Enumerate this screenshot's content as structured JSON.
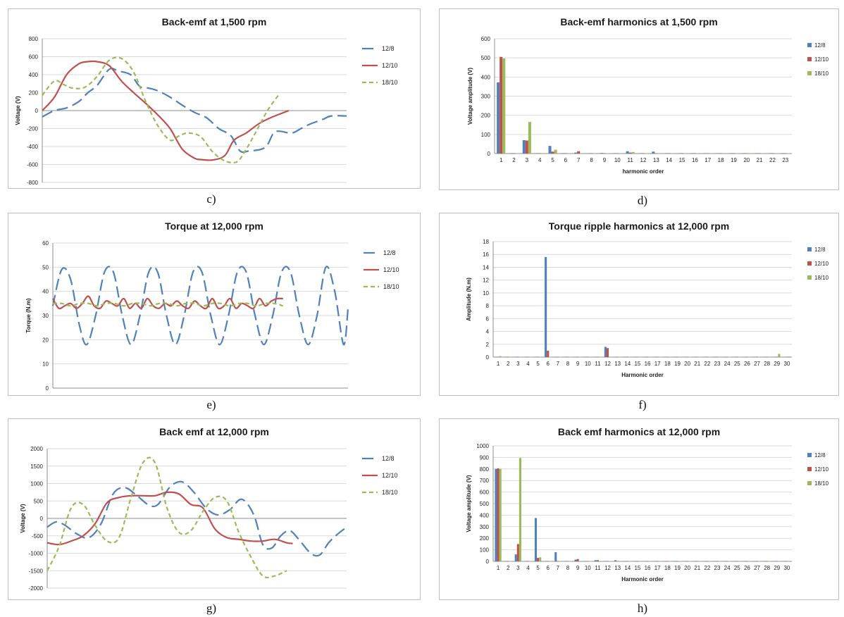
{
  "captions": [
    "c)",
    "d)",
    "e)",
    "f)",
    "g)",
    "h)"
  ],
  "colors": {
    "s12_8": "#4f81bd",
    "s12_10": "#c0504d",
    "s18_10": "#9bbb59"
  },
  "chart_data": [
    {
      "id": "c",
      "type": "line",
      "title": "Back-emf at 1,500 rpm",
      "xlabel": "",
      "ylabel": "Voltage (V)",
      "ylim": [
        -800,
        800
      ],
      "yticks": [
        -800,
        -600,
        -400,
        -200,
        0,
        200,
        400,
        600,
        800
      ],
      "xlim": [
        0,
        1
      ],
      "grid": true,
      "legend": "right",
      "series": [
        {
          "name": "12/8",
          "dash": "long",
          "x": [
            0,
            0.04,
            0.08,
            0.12,
            0.15,
            0.18,
            0.22,
            0.25,
            0.29,
            0.32,
            0.35,
            0.38,
            0.42,
            0.46,
            0.5,
            0.54,
            0.58,
            0.62,
            0.65,
            0.68,
            0.72,
            0.74,
            0.76,
            0.78,
            0.82,
            0.85,
            0.88,
            0.92,
            0.95,
            1.0
          ],
          "y": [
            -70,
            0,
            30,
            100,
            200,
            280,
            460,
            440,
            400,
            270,
            250,
            220,
            150,
            60,
            -20,
            -80,
            -200,
            -280,
            -450,
            -450,
            -430,
            -380,
            -250,
            -230,
            -250,
            -200,
            -150,
            -100,
            -60,
            -60
          ]
        },
        {
          "name": "12/10",
          "dash": "solid",
          "x": [
            0,
            0.04,
            0.08,
            0.12,
            0.15,
            0.18,
            0.22,
            0.26,
            0.3,
            0.34,
            0.38,
            0.42,
            0.46,
            0.5,
            0.52,
            0.56,
            0.6,
            0.63,
            0.67,
            0.71,
            0.75,
            0.81
          ],
          "y": [
            0,
            150,
            400,
            520,
            545,
            545,
            500,
            330,
            200,
            80,
            -50,
            -200,
            -430,
            -530,
            -545,
            -550,
            -500,
            -330,
            -250,
            -150,
            -80,
            0
          ]
        },
        {
          "name": "18/10",
          "dash": "short",
          "x": [
            0,
            0.04,
            0.07,
            0.1,
            0.14,
            0.18,
            0.22,
            0.26,
            0.3,
            0.34,
            0.38,
            0.42,
            0.45,
            0.48,
            0.52,
            0.56,
            0.6,
            0.64,
            0.67,
            0.7,
            0.74,
            0.78
          ],
          "y": [
            170,
            330,
            290,
            250,
            260,
            380,
            560,
            580,
            430,
            100,
            -170,
            -330,
            -280,
            -250,
            -290,
            -460,
            -560,
            -570,
            -430,
            -250,
            0,
            190
          ]
        }
      ]
    },
    {
      "id": "d",
      "type": "bar",
      "title": "Back-emf harmonics at 1,500 rpm",
      "xlabel": "harmonic order",
      "ylabel": "Voltage amplitude (V)",
      "ylim": [
        0,
        600
      ],
      "yticks": [
        0,
        100,
        200,
        300,
        400,
        500,
        600
      ],
      "grid": true,
      "legend": "right",
      "categories": [
        "1",
        "2",
        "3",
        "4",
        "5",
        "6",
        "7",
        "8",
        "9",
        "10",
        "11",
        "12",
        "13",
        "14",
        "15",
        "16",
        "17",
        "18",
        "19",
        "20",
        "21",
        "22",
        "23"
      ],
      "series": [
        {
          "name": "12/8",
          "values": [
            372,
            2,
            70,
            2,
            40,
            2,
            5,
            2,
            3,
            2,
            12,
            2,
            10,
            2,
            2,
            2,
            2,
            2,
            2,
            2,
            2,
            2,
            2
          ]
        },
        {
          "name": "12/10",
          "values": [
            505,
            2,
            68,
            2,
            10,
            2,
            12,
            2,
            2,
            2,
            5,
            2,
            2,
            2,
            2,
            2,
            2,
            2,
            2,
            2,
            2,
            2,
            2
          ]
        },
        {
          "name": "18/10",
          "values": [
            497,
            2,
            165,
            2,
            20,
            2,
            2,
            2,
            2,
            2,
            8,
            2,
            2,
            2,
            2,
            2,
            2,
            2,
            2,
            2,
            2,
            2,
            2
          ]
        }
      ]
    },
    {
      "id": "e",
      "type": "line",
      "title": "Torque at 12,000 rpm",
      "xlabel": "",
      "ylabel": "Torque (N.m)",
      "ylim": [
        0,
        60
      ],
      "yticks": [
        0,
        10,
        20,
        30,
        40,
        50,
        60
      ],
      "xlim": [
        0,
        1
      ],
      "grid": true,
      "legend": "right",
      "series": [
        {
          "name": "12/8",
          "dash": "long",
          "x": [
            0,
            0.03,
            0.06,
            0.09,
            0.115,
            0.145,
            0.175,
            0.205,
            0.235,
            0.265,
            0.295,
            0.325,
            0.355,
            0.385,
            0.415,
            0.445,
            0.475,
            0.505,
            0.535,
            0.565,
            0.595,
            0.625,
            0.655,
            0.685,
            0.715,
            0.745,
            0.775,
            0.805,
            0.835,
            0.865,
            0.895,
            0.925,
            0.955,
            0.985,
            1.0
          ],
          "y": [
            34,
            49,
            45,
            26,
            18,
            30,
            48,
            48,
            30,
            18,
            30,
            48,
            48,
            30,
            18,
            30,
            48,
            48,
            30,
            18,
            30,
            48,
            48,
            30,
            18,
            30,
            48,
            48,
            30,
            18,
            30,
            50,
            40,
            18,
            33
          ]
        },
        {
          "name": "12/10",
          "dash": "solid",
          "x": [
            0,
            0.02,
            0.04,
            0.06,
            0.08,
            0.1,
            0.12,
            0.14,
            0.16,
            0.18,
            0.2,
            0.22,
            0.24,
            0.26,
            0.28,
            0.3,
            0.32,
            0.34,
            0.36,
            0.38,
            0.4,
            0.42,
            0.44,
            0.46,
            0.48,
            0.5,
            0.52,
            0.54,
            0.56,
            0.58,
            0.6,
            0.62,
            0.64,
            0.66,
            0.68,
            0.7,
            0.72,
            0.74,
            0.76,
            0.78
          ],
          "y": [
            37,
            33,
            34,
            35,
            33,
            35,
            38,
            34,
            33,
            36,
            35,
            34,
            37,
            33,
            35,
            33,
            37,
            34,
            33,
            35,
            34,
            36,
            34,
            33,
            36,
            34,
            33,
            37,
            33,
            34,
            37,
            33,
            35,
            34,
            33,
            37,
            34,
            36,
            37,
            37
          ]
        },
        {
          "name": "18/10",
          "dash": "short",
          "x": [
            0,
            0.03,
            0.06,
            0.09,
            0.12,
            0.15,
            0.18,
            0.21,
            0.24,
            0.27,
            0.3,
            0.33,
            0.36,
            0.39,
            0.42,
            0.45,
            0.48,
            0.51,
            0.54,
            0.57,
            0.6,
            0.63,
            0.66,
            0.69,
            0.72,
            0.75,
            0.78
          ],
          "y": [
            35,
            35,
            34,
            35,
            35,
            34,
            35,
            35,
            34,
            35,
            35,
            34,
            35,
            35,
            34,
            35,
            35,
            34,
            35,
            35,
            34,
            35,
            35,
            34,
            35,
            35,
            34
          ]
        }
      ]
    },
    {
      "id": "f",
      "type": "bar",
      "title": "Torque ripple harmonics at 12,000 rpm",
      "xlabel": "Harmonic order",
      "ylabel": "Amplitude (N.m)",
      "ylim": [
        0,
        18
      ],
      "yticks": [
        0,
        2,
        4,
        6,
        8,
        10,
        12,
        14,
        16,
        18
      ],
      "grid": true,
      "legend": "right",
      "categories": [
        "1",
        "2",
        "3",
        "4",
        "5",
        "6",
        "7",
        "8",
        "9",
        "10",
        "11",
        "12",
        "13",
        "14",
        "15",
        "16",
        "17",
        "18",
        "19",
        "20",
        "21",
        "22",
        "23",
        "24",
        "25",
        "26",
        "27",
        "28",
        "29",
        "30"
      ],
      "series": [
        {
          "name": "12/8",
          "values": [
            0.05,
            0.05,
            0.05,
            0.05,
            0.05,
            15.6,
            0.05,
            0.05,
            0.05,
            0.05,
            0.05,
            1.6,
            0.05,
            0.05,
            0.05,
            0.05,
            0.05,
            0.05,
            0.05,
            0.05,
            0.05,
            0.05,
            0.05,
            0.05,
            0.05,
            0.05,
            0.05,
            0.05,
            0.05,
            0.05
          ]
        },
        {
          "name": "12/10",
          "values": [
            0.05,
            0.05,
            0.05,
            0.05,
            0.05,
            1.0,
            0.05,
            0.05,
            0.05,
            0.05,
            0.05,
            1.4,
            0.05,
            0.05,
            0.05,
            0.05,
            0.05,
            0.05,
            0.05,
            0.05,
            0.05,
            0.05,
            0.05,
            0.05,
            0.05,
            0.05,
            0.05,
            0.05,
            0.05,
            0.05
          ]
        },
        {
          "name": "18/10",
          "values": [
            0.15,
            0.05,
            0.05,
            0.05,
            0.05,
            0.05,
            0.05,
            0.05,
            0.05,
            0.05,
            0.05,
            0.05,
            0.05,
            0.05,
            0.05,
            0.05,
            0.05,
            0.05,
            0.05,
            0.05,
            0.05,
            0.05,
            0.05,
            0.05,
            0.05,
            0.05,
            0.05,
            0.05,
            0.5,
            0.1
          ]
        }
      ]
    },
    {
      "id": "g",
      "type": "line",
      "title": "Back emf at 12,000 rpm",
      "xlabel": "",
      "ylabel": "Voltage (V)",
      "ylim": [
        -2000,
        2000
      ],
      "yticks": [
        -2000,
        -1500,
        -1000,
        -500,
        0,
        500,
        1000,
        1500,
        2000
      ],
      "xlim": [
        0,
        1
      ],
      "grid": true,
      "legend": "right",
      "series": [
        {
          "name": "12/8",
          "dash": "long",
          "x": [
            0,
            0.03,
            0.06,
            0.1,
            0.14,
            0.18,
            0.22,
            0.26,
            0.3,
            0.34,
            0.37,
            0.41,
            0.45,
            0.49,
            0.53,
            0.57,
            0.61,
            0.65,
            0.69,
            0.72,
            0.75,
            0.78,
            0.81,
            0.84,
            0.88,
            0.91,
            0.94,
            0.97,
            1.0
          ],
          "y": [
            -250,
            -100,
            -200,
            -450,
            -550,
            -150,
            700,
            880,
            650,
            380,
            400,
            900,
            1050,
            750,
            300,
            100,
            250,
            550,
            100,
            -750,
            -850,
            -500,
            -350,
            -600,
            -1000,
            -1050,
            -700,
            -450,
            -250
          ]
        },
        {
          "name": "12/10",
          "dash": "solid",
          "x": [
            0,
            0.04,
            0.08,
            0.12,
            0.16,
            0.2,
            0.24,
            0.28,
            0.32,
            0.36,
            0.4,
            0.44,
            0.48,
            0.52,
            0.56,
            0.6,
            0.64,
            0.68,
            0.72,
            0.76,
            0.8,
            0.82
          ],
          "y": [
            -700,
            -750,
            -650,
            -500,
            -150,
            450,
            600,
            650,
            650,
            650,
            750,
            700,
            400,
            300,
            -300,
            -550,
            -600,
            -650,
            -650,
            -600,
            -700,
            -720
          ]
        },
        {
          "name": "18/10",
          "dash": "short",
          "x": [
            0,
            0.04,
            0.08,
            0.12,
            0.16,
            0.2,
            0.24,
            0.28,
            0.32,
            0.36,
            0.4,
            0.44,
            0.48,
            0.52,
            0.56,
            0.6,
            0.64,
            0.68,
            0.72,
            0.76,
            0.8
          ],
          "y": [
            -1500,
            -800,
            300,
            400,
            -200,
            -650,
            -550,
            600,
            1600,
            1600,
            300,
            -400,
            -350,
            200,
            600,
            500,
            -400,
            -1100,
            -1650,
            -1650,
            -1500
          ]
        }
      ]
    },
    {
      "id": "h",
      "type": "bar",
      "title": "Back emf harmonics at 12,000 rpm",
      "xlabel": "Harmonic order",
      "ylabel": "Voltage amplitude (V)",
      "ylim": [
        0,
        1000
      ],
      "yticks": [
        0,
        100,
        200,
        300,
        400,
        500,
        600,
        700,
        800,
        900,
        1000
      ],
      "grid": true,
      "legend": "right",
      "categories": [
        "1",
        "2",
        "3",
        "4",
        "5",
        "6",
        "7",
        "8",
        "9",
        "10",
        "11",
        "12",
        "13",
        "14",
        "15",
        "16",
        "17",
        "18",
        "19",
        "20",
        "21",
        "22",
        "23",
        "24",
        "25",
        "26",
        "27",
        "28",
        "29",
        "30"
      ],
      "series": [
        {
          "name": "12/8",
          "values": [
            800,
            3,
            60,
            3,
            375,
            3,
            80,
            3,
            15,
            3,
            10,
            3,
            10,
            3,
            3,
            3,
            3,
            3,
            3,
            3,
            3,
            3,
            3,
            3,
            3,
            3,
            3,
            3,
            3,
            3
          ]
        },
        {
          "name": "12/10",
          "values": [
            805,
            3,
            150,
            3,
            30,
            3,
            3,
            3,
            20,
            3,
            10,
            3,
            3,
            3,
            3,
            3,
            3,
            3,
            3,
            3,
            3,
            3,
            3,
            3,
            3,
            3,
            3,
            3,
            3,
            3
          ]
        },
        {
          "name": "18/10",
          "values": [
            800,
            3,
            895,
            3,
            35,
            3,
            3,
            3,
            3,
            3,
            3,
            3,
            3,
            3,
            3,
            3,
            3,
            3,
            3,
            3,
            3,
            3,
            3,
            3,
            3,
            3,
            3,
            3,
            3,
            3
          ]
        }
      ]
    }
  ]
}
